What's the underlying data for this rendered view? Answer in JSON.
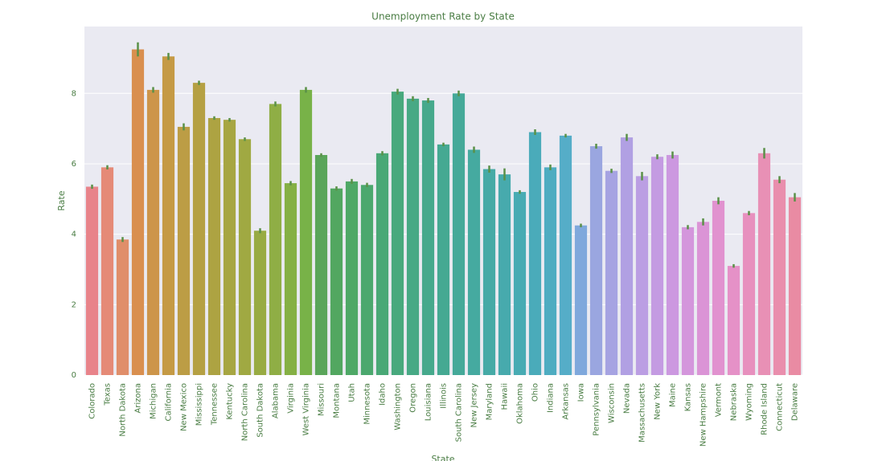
{
  "chart_data": {
    "type": "bar",
    "title": "Unemployment Rate by State",
    "x_label": "State",
    "y_label": "Rate",
    "categories": [
      "Colorado",
      "Texas",
      "North Dakota",
      "Arizona",
      "Michigan",
      "California",
      "New Mexico",
      "Mississippi",
      "Tennessee",
      "Kentucky",
      "North Carolina",
      "South Dakota",
      "Alabama",
      "Virginia",
      "West Virginia",
      "Missouri",
      "Montana",
      "Utah",
      "Minnesota",
      "Idaho",
      "Washington",
      "Oregon",
      "Louisiana",
      "Illinois",
      "South Carolina",
      "New Jersey",
      "Maryland",
      "Hawaii",
      "Oklahoma",
      "Ohio",
      "Indiana",
      "Arkansas",
      "Iowa",
      "Pennsylvania",
      "Wisconsin",
      "Nevada",
      "Massachusetts",
      "New York",
      "Maine",
      "Kansas",
      "New Hampshire",
      "Vermont",
      "Nebraska",
      "Wyoming",
      "Rhode Island",
      "Connecticut",
      "Delaware"
    ],
    "values": [
      5.35,
      5.9,
      3.85,
      9.25,
      8.1,
      9.05,
      7.05,
      8.3,
      7.3,
      7.25,
      6.7,
      4.1,
      7.7,
      5.45,
      8.1,
      6.25,
      5.3,
      5.5,
      5.4,
      6.3,
      8.05,
      7.85,
      7.8,
      6.55,
      8.0,
      6.4,
      5.85,
      5.7,
      5.2,
      6.9,
      5.9,
      6.8,
      4.25,
      6.5,
      5.8,
      6.75,
      5.65,
      6.2,
      6.25,
      4.2,
      4.35,
      4.95,
      3.1,
      4.6,
      6.3,
      5.55,
      5.05
    ],
    "errors": [
      0.06,
      0.06,
      0.07,
      0.2,
      0.08,
      0.1,
      0.1,
      0.06,
      0.05,
      0.05,
      0.05,
      0.07,
      0.07,
      0.06,
      0.08,
      0.05,
      0.06,
      0.07,
      0.06,
      0.06,
      0.08,
      0.07,
      0.07,
      0.05,
      0.08,
      0.09,
      0.1,
      0.17,
      0.05,
      0.08,
      0.08,
      0.05,
      0.05,
      0.07,
      0.06,
      0.1,
      0.12,
      0.07,
      0.1,
      0.06,
      0.1,
      0.1,
      0.05,
      0.06,
      0.15,
      0.1,
      0.12
    ],
    "colors": [
      "#e8838a",
      "#e58a77",
      "#e08e6a",
      "#d98f4f",
      "#cd954a",
      "#c59a45",
      "#bc9d45",
      "#b5a043",
      "#ada342",
      "#a7a642",
      "#a0a942",
      "#98ab43",
      "#8fae45",
      "#85b044",
      "#78b248",
      "#5aa55a",
      "#52a760",
      "#4ea866",
      "#4ba86e",
      "#49a876",
      "#48a97d",
      "#47a985",
      "#46a98c",
      "#45a992",
      "#45a999",
      "#45aaa0",
      "#46aaa6",
      "#47aaad",
      "#48abb3",
      "#4aabba",
      "#4eacc1",
      "#55adc8",
      "#7fa8dc",
      "#9aa6e0",
      "#a6a3e2",
      "#b1a0e3",
      "#bb9ee3",
      "#c49be2",
      "#cc98e0",
      "#d496dc",
      "#db94d6",
      "#e192cf",
      "#e591c7",
      "#e790be",
      "#e890b5",
      "#e98ead",
      "#e98ba3"
    ],
    "error_color": "#5a9148",
    "text_color": "#4a7d44",
    "ylim": [
      0,
      9.9
    ],
    "yticks": [
      0,
      2,
      4,
      6,
      8
    ],
    "grid": true
  }
}
